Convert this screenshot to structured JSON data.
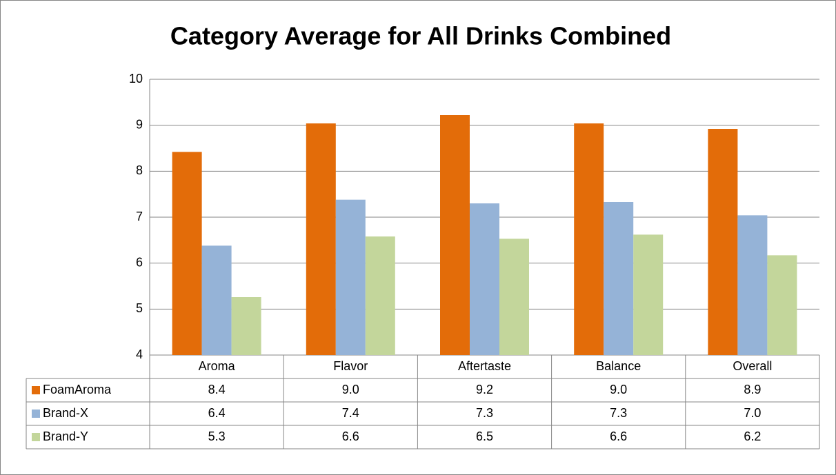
{
  "chart_data": {
    "type": "bar",
    "title": "Category Average for All Drinks Combined",
    "categories": [
      "Aroma",
      "Flavor",
      "Aftertaste",
      "Balance",
      "Overall"
    ],
    "series": [
      {
        "name": "FoamAroma",
        "color": "#e36c09",
        "values": [
          8.42,
          9.04,
          9.22,
          9.04,
          8.92
        ],
        "value_labels": [
          "8.4",
          "9.0",
          "9.2",
          "9.0",
          "8.9"
        ]
      },
      {
        "name": "Brand-X",
        "color": "#95b3d7",
        "values": [
          6.38,
          7.38,
          7.3,
          7.33,
          7.04
        ],
        "value_labels": [
          "6.4",
          "7.4",
          "7.3",
          "7.3",
          "7.0"
        ]
      },
      {
        "name": "Brand-Y",
        "color": "#c3d69b",
        "values": [
          5.26,
          6.58,
          6.53,
          6.62,
          6.17
        ],
        "value_labels": [
          "5.3",
          "6.6",
          "6.5",
          "6.6",
          "6.2"
        ]
      }
    ],
    "ylim": [
      4,
      10
    ],
    "yticks": [
      4,
      5,
      6,
      7,
      8,
      9,
      10
    ],
    "grid": true
  }
}
